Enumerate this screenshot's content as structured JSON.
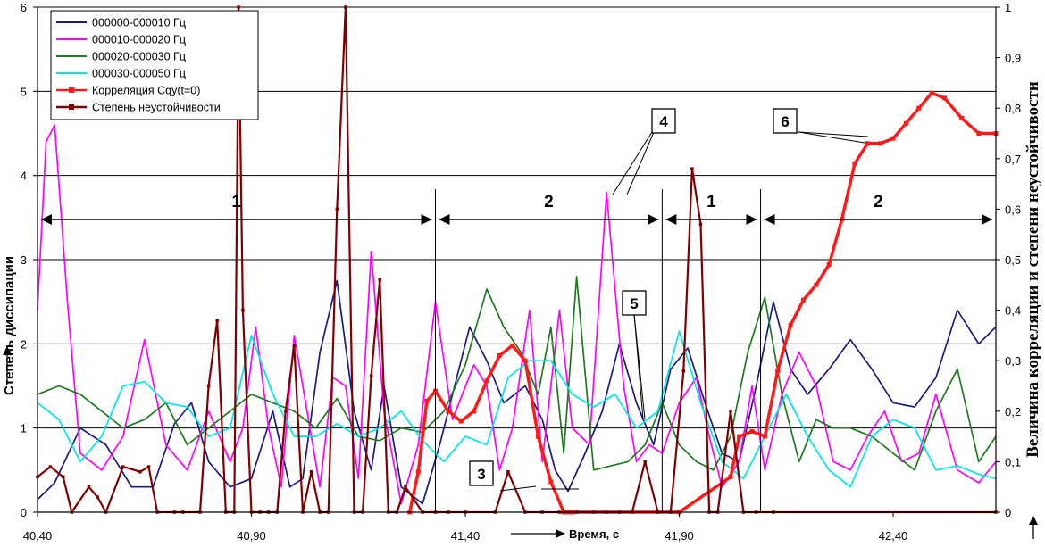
{
  "chart_data": {
    "type": "line",
    "ylabel_left": "Степень диссипации",
    "ylabel_right": "Величина корреляции и степени неустойчивости",
    "xlabel": "Время, с",
    "xlim": [
      40.4,
      42.64
    ],
    "ylim_left": [
      0,
      6
    ],
    "ylim_right": [
      0,
      1
    ],
    "x_ticks": [
      "40,40",
      "40,90",
      "41,40",
      "41,90",
      "42,40"
    ],
    "x_tick_values": [
      40.4,
      40.9,
      41.4,
      41.9,
      42.4
    ],
    "y_ticks_left": [
      "0",
      "1",
      "2",
      "3",
      "4",
      "5",
      "6"
    ],
    "y_ticks_right": [
      "0",
      "0,1",
      "0,2",
      "0,3",
      "0,4",
      "0,5",
      "0,6",
      "0,7",
      "0,8",
      "0,9",
      "1"
    ],
    "grid": "horizontal",
    "legend_position": "top-left",
    "series": [
      {
        "name": "000000-000010 Гц",
        "axis": "left",
        "color": "#1a1a80",
        "x": [
          40.4,
          40.44,
          40.5,
          40.56,
          40.62,
          40.67,
          40.72,
          40.76,
          40.8,
          40.85,
          40.9,
          40.95,
          40.99,
          41.02,
          41.06,
          41.1,
          41.14,
          41.18,
          41.21,
          41.25,
          41.3,
          41.34,
          41.38,
          41.41,
          41.45,
          41.49,
          41.54,
          41.58,
          41.61,
          41.64,
          41.68,
          41.72,
          41.76,
          41.8,
          41.84,
          41.88,
          41.92,
          41.96,
          42.0,
          42.04,
          42.08,
          42.12,
          42.16,
          42.2,
          42.25,
          42.3,
          42.35,
          42.4,
          42.45,
          42.5,
          42.55,
          42.6,
          42.64
        ],
        "values": [
          0.15,
          0.35,
          1.0,
          0.8,
          0.3,
          0.3,
          1.05,
          1.3,
          0.6,
          0.3,
          0.4,
          1.2,
          0.3,
          0.4,
          1.9,
          2.75,
          1.2,
          0.5,
          1.5,
          0.3,
          0.1,
          0.8,
          1.6,
          2.2,
          1.8,
          1.3,
          1.5,
          1.1,
          0.5,
          0.25,
          0.7,
          1.2,
          2.0,
          1.3,
          0.8,
          1.7,
          1.95,
          1.3,
          0.7,
          0.6,
          1.5,
          2.5,
          1.7,
          1.4,
          1.7,
          2.05,
          1.7,
          1.3,
          1.25,
          1.6,
          2.4,
          2.0,
          2.2
        ]
      },
      {
        "name": "000010-000020 Гц",
        "axis": "left",
        "color": "#ff00ff",
        "x": [
          40.4,
          40.42,
          40.44,
          40.47,
          40.5,
          40.55,
          40.6,
          40.65,
          40.7,
          40.75,
          40.8,
          40.85,
          40.88,
          40.91,
          40.94,
          40.97,
          41.0,
          41.03,
          41.06,
          41.09,
          41.12,
          41.15,
          41.18,
          41.21,
          41.25,
          41.29,
          41.33,
          41.37,
          41.42,
          41.45,
          41.48,
          41.51,
          41.55,
          41.58,
          41.62,
          41.65,
          41.69,
          41.73,
          41.77,
          41.8,
          41.83,
          41.86,
          41.9,
          41.94,
          41.97,
          42.0,
          42.04,
          42.07,
          42.1,
          42.14,
          42.18,
          42.22,
          42.26,
          42.3,
          42.34,
          42.38,
          42.42,
          42.46,
          42.5,
          42.55,
          42.6,
          42.64
        ],
        "values": [
          2.4,
          4.4,
          4.6,
          2.5,
          0.7,
          0.5,
          0.9,
          2.05,
          0.8,
          0.5,
          1.2,
          0.6,
          1.0,
          2.2,
          1.0,
          0.3,
          2.1,
          1.2,
          0.3,
          1.6,
          1.5,
          0.4,
          3.1,
          1.2,
          0.1,
          0.8,
          2.5,
          1.1,
          1.75,
          1.5,
          0.5,
          1.0,
          2.4,
          0.6,
          2.4,
          1.0,
          0.8,
          3.8,
          1.5,
          0.6,
          0.8,
          0.7,
          1.3,
          1.6,
          0.9,
          0.3,
          0.6,
          1.5,
          0.5,
          1.4,
          1.9,
          1.5,
          0.6,
          0.5,
          0.9,
          1.2,
          0.6,
          0.7,
          1.4,
          0.5,
          0.35,
          0.6
        ]
      },
      {
        "name": "000020-000030 Гц",
        "axis": "left",
        "color": "#1e7a1e",
        "x": [
          40.4,
          40.45,
          40.5,
          40.55,
          40.6,
          40.65,
          40.7,
          40.75,
          40.8,
          40.85,
          40.9,
          40.95,
          41.0,
          41.05,
          41.1,
          41.15,
          41.2,
          41.25,
          41.3,
          41.35,
          41.4,
          41.45,
          41.49,
          41.53,
          41.57,
          41.6,
          41.63,
          41.66,
          41.7,
          41.74,
          41.78,
          41.82,
          41.86,
          41.9,
          41.94,
          41.98,
          42.02,
          42.06,
          42.1,
          42.14,
          42.18,
          42.22,
          42.26,
          42.3,
          42.35,
          42.4,
          42.45,
          42.5,
          42.55,
          42.6,
          42.64
        ],
        "values": [
          1.4,
          1.5,
          1.4,
          1.2,
          1.0,
          1.1,
          1.3,
          0.8,
          1.0,
          1.2,
          1.4,
          1.3,
          1.2,
          1.0,
          1.35,
          0.9,
          0.85,
          1.0,
          0.95,
          1.2,
          1.75,
          2.65,
          2.2,
          1.9,
          1.4,
          2.2,
          0.7,
          2.8,
          0.5,
          0.55,
          0.6,
          0.8,
          1.3,
          0.8,
          0.6,
          0.5,
          0.9,
          1.9,
          2.55,
          1.4,
          0.6,
          1.1,
          1.0,
          1.0,
          0.9,
          0.7,
          0.5,
          1.2,
          1.7,
          0.6,
          0.9
        ]
      },
      {
        "name": "000030-000050 Гц",
        "axis": "left",
        "color": "#00e6e6",
        "x": [
          40.4,
          40.45,
          40.5,
          40.55,
          40.6,
          40.65,
          40.7,
          40.75,
          40.8,
          40.85,
          40.9,
          40.95,
          41.0,
          41.05,
          41.1,
          41.15,
          41.2,
          41.25,
          41.3,
          41.35,
          41.4,
          41.45,
          41.5,
          41.55,
          41.6,
          41.65,
          41.7,
          41.75,
          41.8,
          41.85,
          41.9,
          41.95,
          42.0,
          42.05,
          42.1,
          42.15,
          42.2,
          42.25,
          42.3,
          42.35,
          42.4,
          42.45,
          42.5,
          42.55,
          42.6,
          42.64
        ],
        "values": [
          1.3,
          1.1,
          0.6,
          0.9,
          1.5,
          1.55,
          1.3,
          1.25,
          0.9,
          1.0,
          2.1,
          1.4,
          0.9,
          0.9,
          1.05,
          0.9,
          1.0,
          1.2,
          0.85,
          0.6,
          0.9,
          0.8,
          1.6,
          1.8,
          1.8,
          1.4,
          1.25,
          1.4,
          1.0,
          1.2,
          2.15,
          1.3,
          0.6,
          0.4,
          0.9,
          1.4,
          0.9,
          0.5,
          0.3,
          0.9,
          1.1,
          1.0,
          0.5,
          0.55,
          0.45,
          0.4
        ]
      },
      {
        "name": "Корреляция Cqy(t=0)",
        "axis": "right",
        "color": "#ff1a1a",
        "x": [
          41.27,
          41.29,
          41.31,
          41.33,
          41.36,
          41.39,
          41.42,
          41.45,
          41.48,
          41.51,
          41.54,
          41.57,
          41.6,
          41.63,
          41.64,
          41.65,
          41.9,
          42.02,
          42.04,
          42.07,
          42.1,
          42.13,
          42.16,
          42.19,
          42.22,
          42.25,
          42.28,
          42.31,
          42.34,
          42.37,
          42.4,
          42.43,
          42.46,
          42.49,
          42.52,
          42.56,
          42.6,
          42.64
        ],
        "values": [
          0.0,
          0.08,
          0.22,
          0.24,
          0.2,
          0.18,
          0.2,
          0.26,
          0.31,
          0.33,
          0.3,
          0.15,
          0.06,
          0.0,
          0.0,
          0.0,
          0.0,
          0.07,
          0.15,
          0.16,
          0.15,
          0.28,
          0.37,
          0.42,
          0.45,
          0.49,
          0.58,
          0.69,
          0.73,
          0.73,
          0.74,
          0.77,
          0.8,
          0.83,
          0.82,
          0.78,
          0.75,
          0.75
        ]
      },
      {
        "name": "Степень неустойчивости",
        "axis": "right",
        "color": "#800000",
        "x": [
          40.4,
          40.43,
          40.46,
          40.48,
          40.52,
          40.54,
          40.56,
          40.6,
          40.64,
          40.66,
          40.68,
          40.72,
          40.74,
          40.78,
          40.8,
          40.82,
          40.84,
          40.86,
          40.87,
          40.88,
          40.9,
          40.92,
          40.94,
          40.96,
          40.98,
          41.0,
          41.02,
          41.04,
          41.06,
          41.08,
          41.1,
          41.12,
          41.14,
          41.16,
          41.18,
          41.2,
          41.22,
          41.24,
          41.26,
          41.3,
          41.33,
          41.36,
          41.4,
          41.47,
          41.5,
          41.54,
          41.58,
          41.62,
          41.66,
          41.7,
          41.73,
          41.76,
          41.79,
          41.82,
          41.85,
          41.88,
          41.91,
          41.93,
          41.95,
          41.97,
          41.99,
          42.02,
          42.05,
          42.08,
          42.12,
          42.64
        ],
        "values": [
          0.07,
          0.09,
          0.07,
          0.0,
          0.05,
          0.03,
          0.0,
          0.09,
          0.08,
          0.09,
          0.0,
          0.0,
          0.0,
          0.0,
          0.25,
          0.38,
          0.0,
          0.0,
          1.0,
          0.4,
          0.0,
          0.0,
          0.0,
          0.0,
          0.2,
          0.33,
          0.0,
          0.08,
          0.0,
          0.0,
          0.6,
          1.0,
          0.0,
          0.0,
          0.27,
          0.46,
          0.0,
          0.0,
          0.05,
          0.0,
          0.0,
          0.0,
          0.0,
          0.0,
          0.08,
          0.0,
          0.0,
          0.0,
          0.0,
          0.0,
          0.0,
          0.0,
          0.0,
          0.1,
          0.0,
          0.0,
          0.28,
          0.68,
          0.57,
          0.0,
          0.0,
          0.2,
          0.0,
          0.0,
          0.0,
          0.0
        ]
      }
    ],
    "segments": [
      {
        "label": "1",
        "from": 40.4,
        "to": 41.33
      },
      {
        "label": "2",
        "from": 41.33,
        "to": 41.86
      },
      {
        "label": "1",
        "from": 41.86,
        "to": 42.09
      },
      {
        "label": "2",
        "from": 42.09,
        "to": 42.64
      }
    ],
    "callouts": [
      "3",
      "4",
      "5",
      "6"
    ]
  }
}
